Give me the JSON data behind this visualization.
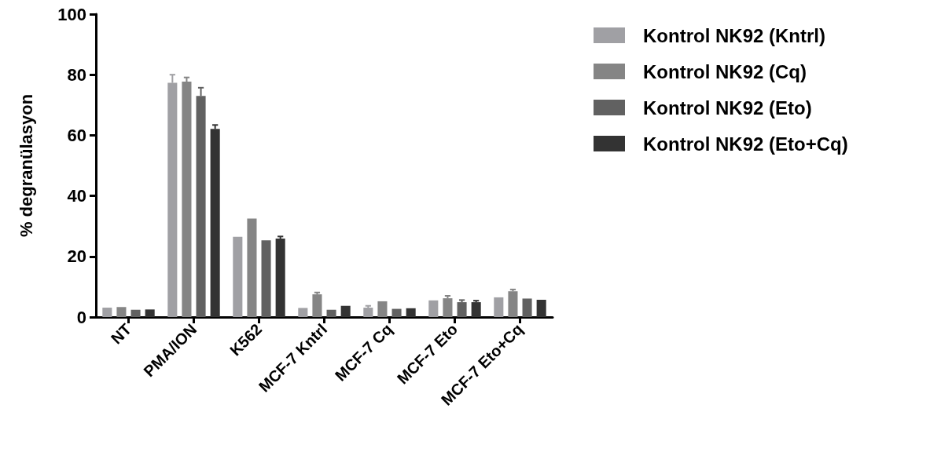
{
  "chart_data": {
    "type": "bar",
    "ylabel": "% degranülasyon",
    "categories": [
      "NT",
      "PMA/ION",
      "K562",
      "MCF-7 Kntrl",
      "MCF-7 Cq",
      "MCF-7 Eto",
      "MCF-7 Eto+Cq"
    ],
    "series": [
      {
        "name": "Kontrol NK92 (Kntrl)",
        "color": "#a0a0a4",
        "values": [
          3.1,
          77.3,
          26.5,
          3.0,
          3.1,
          5.5,
          6.5
        ],
        "errors": [
          null,
          2.7,
          null,
          null,
          0.6,
          null,
          null
        ]
      },
      {
        "name": "Kontrol NK92 (Cq)",
        "color": "#858585",
        "values": [
          3.3,
          77.7,
          32.5,
          7.5,
          5.2,
          6.2,
          8.5
        ],
        "errors": [
          null,
          1.4,
          null,
          0.6,
          null,
          0.8,
          0.6
        ]
      },
      {
        "name": "Kontrol NK92 (Eto)",
        "color": "#616161",
        "values": [
          2.4,
          73.0,
          25.3,
          2.4,
          2.7,
          4.9,
          6.1
        ],
        "errors": [
          null,
          2.7,
          null,
          null,
          null,
          0.7,
          null
        ]
      },
      {
        "name": "Kontrol NK92 (Eto+Cq)",
        "color": "#333333",
        "values": [
          2.5,
          62.1,
          25.9,
          3.7,
          2.9,
          4.9,
          5.7
        ],
        "errors": [
          null,
          1.3,
          0.7,
          null,
          null,
          0.5,
          null
        ]
      }
    ],
    "ylim": [
      0,
      100
    ],
    "yticks": [
      0,
      20,
      40,
      60,
      80,
      100
    ],
    "grid": false,
    "legend": "right"
  }
}
